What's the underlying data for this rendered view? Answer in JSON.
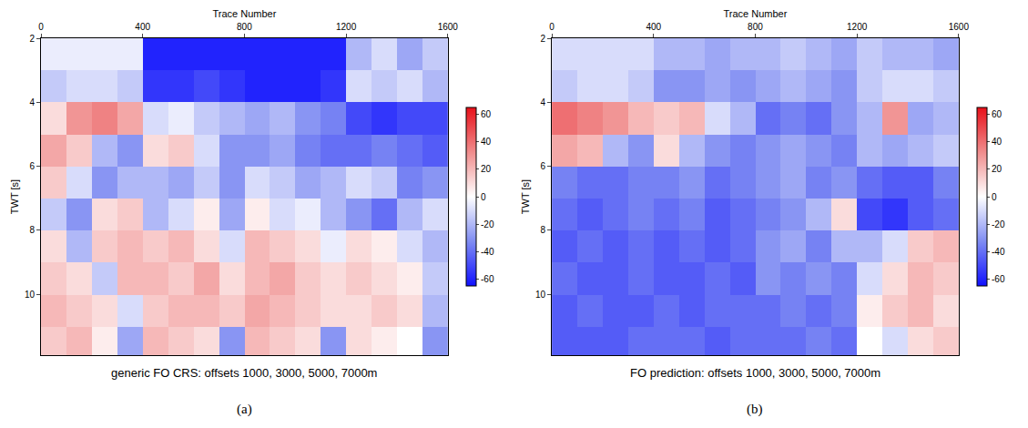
{
  "chart_data": [
    {
      "type": "heatmap",
      "label": "(a)",
      "caption": "generic FO CRS: offsets 1000, 3000, 5000, 7000m",
      "xlabel": "Trace Number",
      "ylabel": "TWT [s]",
      "xlim": [
        0,
        1600
      ],
      "xticks": [
        0,
        400,
        800,
        1200,
        1600
      ],
      "ylim": [
        11.9,
        2
      ],
      "yticks": [
        2,
        4,
        6,
        8,
        10
      ],
      "x": [
        50,
        150,
        250,
        350,
        450,
        550,
        650,
        750,
        850,
        950,
        1050,
        1150,
        1250,
        1350,
        1450,
        1550
      ],
      "y": [
        2.5,
        3.5,
        4.5,
        5.5,
        6.5,
        7.5,
        8.5,
        9.5,
        10.5,
        11.5
      ],
      "z": [
        [
          -5,
          -5,
          -5,
          -5,
          -60,
          -60,
          -60,
          -60,
          -60,
          -60,
          -60,
          -60,
          -20,
          -10,
          -25,
          -15
        ],
        [
          -15,
          -10,
          -10,
          -15,
          -55,
          -55,
          -50,
          -55,
          -60,
          -60,
          -60,
          -55,
          -10,
          -15,
          -10,
          -20
        ],
        [
          10,
          30,
          35,
          25,
          -10,
          -5,
          -15,
          -20,
          -25,
          -20,
          -30,
          -35,
          -50,
          -55,
          -50,
          -50
        ],
        [
          25,
          15,
          -20,
          -30,
          10,
          15,
          -10,
          -30,
          -30,
          -25,
          -35,
          -40,
          -40,
          -35,
          -40,
          -45
        ],
        [
          15,
          -10,
          -30,
          -20,
          -20,
          -25,
          -15,
          -30,
          -10,
          -15,
          -25,
          -20,
          -10,
          -15,
          -35,
          -30
        ],
        [
          -15,
          -30,
          10,
          15,
          -20,
          -10,
          5,
          -25,
          5,
          -10,
          -5,
          -20,
          -30,
          -40,
          -20,
          -10
        ],
        [
          10,
          -20,
          15,
          20,
          15,
          20,
          10,
          -10,
          20,
          15,
          10,
          -5,
          10,
          5,
          -10,
          -20
        ],
        [
          15,
          10,
          -15,
          20,
          20,
          15,
          25,
          10,
          20,
          25,
          15,
          10,
          15,
          10,
          5,
          -15
        ],
        [
          20,
          15,
          10,
          -10,
          15,
          20,
          20,
          15,
          25,
          20,
          15,
          10,
          10,
          15,
          10,
          -20
        ],
        [
          15,
          20,
          5,
          -25,
          20,
          15,
          10,
          -30,
          20,
          15,
          10,
          -30,
          10,
          5,
          0,
          -30
        ]
      ],
      "colorbar": {
        "range": [
          -65,
          65
        ],
        "ticks": [
          -60,
          -40,
          -20,
          0,
          20,
          40,
          60
        ]
      }
    },
    {
      "type": "heatmap",
      "label": "(b)",
      "caption": "FO prediction: offsets 1000, 3000, 5000, 7000m",
      "xlabel": "Trace Number",
      "ylabel": "TWT [s]",
      "xlim": [
        0,
        1600
      ],
      "xticks": [
        0,
        400,
        800,
        1200,
        1600
      ],
      "ylim": [
        11.9,
        2
      ],
      "yticks": [
        2,
        4,
        6,
        8,
        10
      ],
      "x": [
        50,
        150,
        250,
        350,
        450,
        550,
        650,
        750,
        850,
        950,
        1050,
        1150,
        1250,
        1350,
        1450,
        1550
      ],
      "y": [
        2.5,
        3.5,
        4.5,
        5.5,
        6.5,
        7.5,
        8.5,
        9.5,
        10.5,
        11.5
      ],
      "z": [
        [
          -10,
          -10,
          -10,
          -10,
          -20,
          -20,
          -25,
          -20,
          -20,
          -15,
          -20,
          -25,
          -15,
          -20,
          -20,
          -25
        ],
        [
          -15,
          -10,
          -10,
          -15,
          -30,
          -30,
          -25,
          -30,
          -25,
          -20,
          -25,
          -30,
          -15,
          -10,
          -10,
          -15
        ],
        [
          40,
          35,
          30,
          20,
          15,
          20,
          -10,
          -20,
          -40,
          -35,
          -40,
          -30,
          -20,
          30,
          -25,
          -20
        ],
        [
          25,
          20,
          -20,
          -30,
          10,
          -20,
          -30,
          -35,
          -30,
          -25,
          -30,
          -35,
          -20,
          -25,
          -20,
          -15
        ],
        [
          -35,
          -40,
          -40,
          -35,
          -35,
          -30,
          -40,
          -35,
          -30,
          -25,
          -35,
          -30,
          -40,
          -45,
          -45,
          -35
        ],
        [
          -40,
          -45,
          -40,
          -35,
          -40,
          -35,
          -45,
          -40,
          -35,
          -30,
          -20,
          10,
          -50,
          -55,
          -45,
          -40
        ],
        [
          -45,
          -40,
          -45,
          -40,
          -45,
          -40,
          -45,
          -40,
          -30,
          -25,
          -35,
          -20,
          -20,
          -10,
          15,
          20
        ],
        [
          -40,
          -45,
          -45,
          -40,
          -45,
          -45,
          -40,
          -45,
          -30,
          -35,
          -30,
          -35,
          -10,
          10,
          20,
          15
        ],
        [
          -45,
          -40,
          -45,
          -45,
          -40,
          -45,
          -40,
          -40,
          -40,
          -35,
          -40,
          -35,
          5,
          15,
          20,
          10
        ],
        [
          -45,
          -45,
          -45,
          -40,
          -40,
          -40,
          -45,
          -40,
          -40,
          -40,
          -35,
          -40,
          0,
          -10,
          10,
          15
        ]
      ],
      "colorbar": {
        "range": [
          -65,
          65
        ],
        "ticks": [
          -60,
          -40,
          -20,
          0,
          20,
          40,
          60
        ]
      }
    }
  ]
}
